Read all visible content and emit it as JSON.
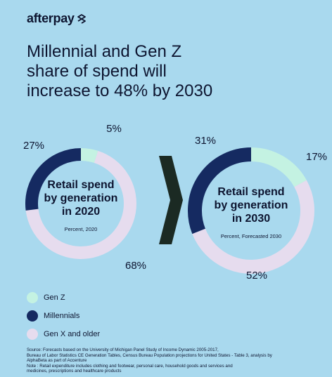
{
  "brand": {
    "name": "afterpay"
  },
  "title": {
    "lines": [
      "Millennial and Gen Z",
      "share of spend will",
      "increase to 48% by 2030"
    ]
  },
  "colors": {
    "background": "#a9d9ee",
    "gen_z": "#c4f2e2",
    "millennials": "#152a61",
    "gen_x_and_older": "#e6dcee",
    "arrow": "#1b2a23"
  },
  "chart_data": [
    {
      "type": "pie",
      "style": "donut",
      "title": "Retail spend by generation in 2020",
      "title_lines": [
        "Retail spend",
        "by generation",
        "in 2020"
      ],
      "subtitle": "Percent, 2020",
      "categories": [
        "Gen Z",
        "Millennials",
        "Gen X and older"
      ],
      "values": [
        5,
        27,
        68
      ],
      "labels": [
        "5%",
        "27%",
        "68%"
      ],
      "legend": "bottom-left"
    },
    {
      "type": "pie",
      "style": "donut",
      "title": "Retail spend by generation in 2030",
      "title_lines": [
        "Retail spend",
        "by generation",
        "in 2030"
      ],
      "subtitle": "Percent, Forecasted 2030",
      "categories": [
        "Gen Z",
        "Millennials",
        "Gen X and older"
      ],
      "values": [
        17,
        31,
        52
      ],
      "labels": [
        "17%",
        "31%",
        "52%"
      ],
      "legend": "bottom-left"
    }
  ],
  "legend": [
    {
      "label": "Gen Z",
      "color": "#c4f2e2"
    },
    {
      "label": "Millennials",
      "color": "#152a61"
    },
    {
      "label": "Gen X and older",
      "color": "#e6dcee"
    }
  ],
  "source": {
    "lines": [
      "Source: Forecasts based on the University of Michigan Panel Study of Income Dynamic 2005-2017,",
      "Bureau of Labor Statistics CE Generation Tables, Census Bureau Population projections for United States - Table 3, analysis by",
      "AlphaBeta as part of Accenture",
      "Note : Retail expenditure includes clothing and footwear, personal care, household goods and services and",
      "medicines, prescriptions and healthcare products"
    ]
  }
}
